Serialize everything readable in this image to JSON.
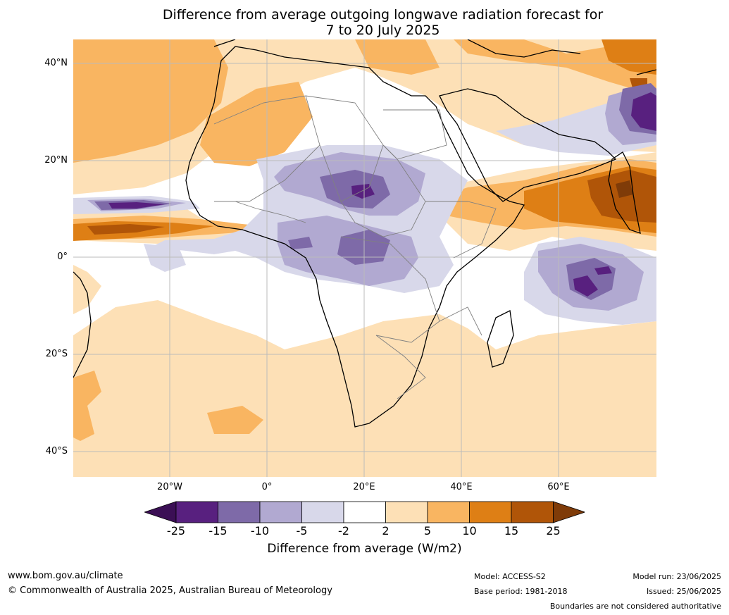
{
  "title_line1": "Difference from average outgoing longwave radiation forecast for",
  "title_line2": "7 to 20 July 2025",
  "lat_labels": [
    "40°N",
    "20°N",
    "0°",
    "20°S",
    "40°S"
  ],
  "lon_labels": [
    "20°W",
    "0°",
    "20°E",
    "40°E",
    "60°E"
  ],
  "colorbar": {
    "ticks": [
      "-25",
      "-15",
      "-10",
      "-5",
      "-2",
      "2",
      "5",
      "10",
      "15",
      "25"
    ],
    "label": "Difference from average (W/m2)",
    "colors": [
      "#3b0f55",
      "#58207f",
      "#7e6aa8",
      "#b1a9d1",
      "#d8d8ea",
      "#ffffff",
      "#fde0b6",
      "#f9b561",
      "#de7f15",
      "#b05508",
      "#7f3b08"
    ]
  },
  "footer": {
    "url": "www.bom.gov.au/climate",
    "copyright": "© Commonwealth of Australia 2025, Australian Bureau of Meteorology",
    "model": "Model: ACCESS-S2",
    "base_period": "Base period: 1981-2018",
    "model_run": "Model run: 23/06/2025",
    "issued": "Issued: 25/06/2025",
    "disclaimer": "Boundaries are not considered authoritative"
  }
}
